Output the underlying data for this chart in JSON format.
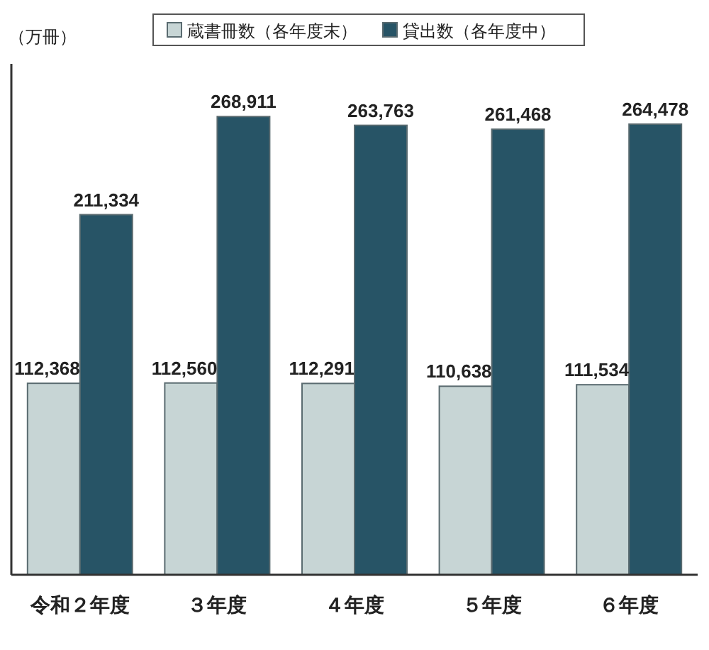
{
  "chart_data": {
    "type": "bar",
    "ylabel": "（万冊）",
    "categories": [
      "令和２年度",
      "３年度",
      "４年度",
      "５年度",
      "６年度"
    ],
    "series": [
      {
        "name": "蔵書冊数（各年度末）",
        "color": "#c7d5d5",
        "values": [
          112368,
          112560,
          112291,
          110638,
          111534
        ],
        "value_labels": [
          "112,368",
          "112,560",
          "112,291",
          "110,638",
          "111,534"
        ]
      },
      {
        "name": "貸出数（各年度中）",
        "color": "#275466",
        "values": [
          211334,
          268911,
          263763,
          261468,
          264478
        ],
        "value_labels": [
          "211,334",
          "268,911",
          "263,763",
          "261,468",
          "264,478"
        ]
      }
    ],
    "tick_labels": "x",
    "legend": "top"
  }
}
